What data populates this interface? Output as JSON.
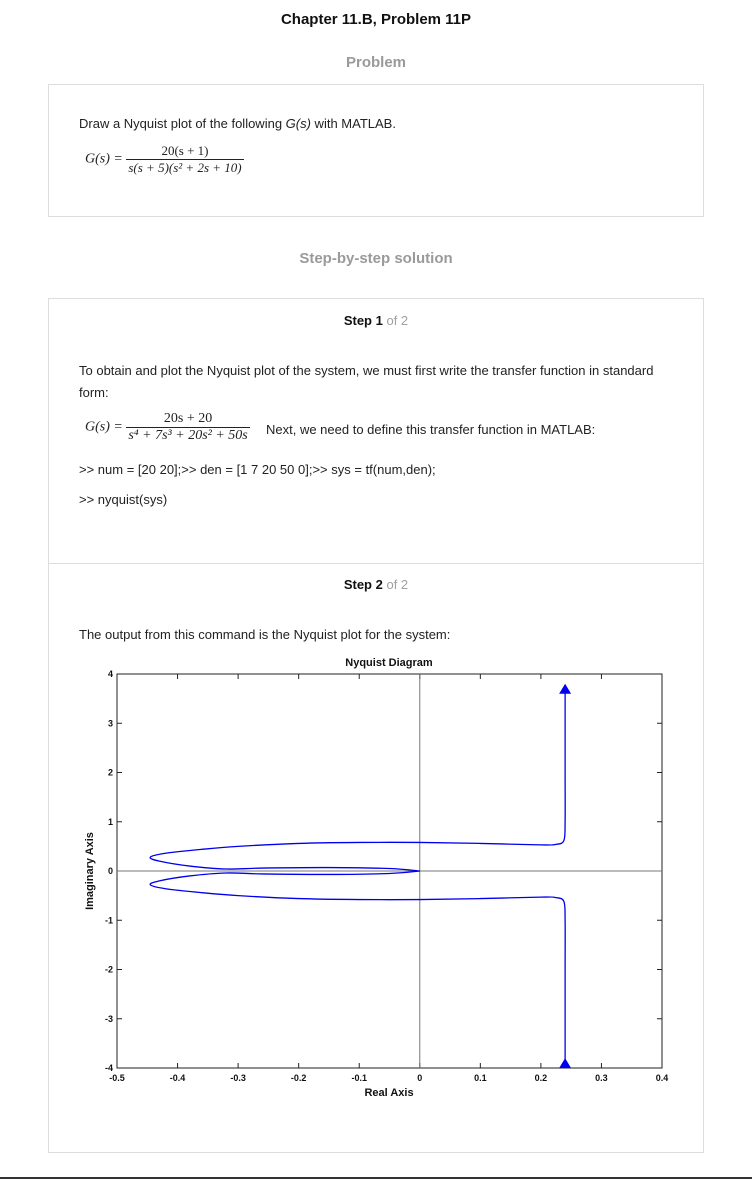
{
  "header": {
    "title": "Chapter 11.B, Problem 11P"
  },
  "problem": {
    "heading": "Problem",
    "text_prefix": "Draw a Nyquist plot of the following ",
    "text_g": "G(s)",
    "text_suffix": " with MATLAB.",
    "eq_lhs": "G(s) =",
    "eq_num": "20(s + 1)",
    "eq_den": "s(s + 5)(s² + 2s + 10)"
  },
  "solution": {
    "heading": "Step-by-step solution",
    "step1": {
      "label": "Step 1",
      "of": "of 2",
      "para": "To obtain and plot the Nyquist plot of the system, we must first write the transfer function in standard form:",
      "eq_lhs": "G(s) =",
      "eq_num": "20s + 20",
      "eq_den": "s⁴ + 7s³ + 20s² + 50s",
      "next_text": "Next, we need to define this transfer function in MATLAB:",
      "code1": ">> num = [20 20];>> den = [1 7 20 50 0];>> sys = tf(num,den);",
      "code2": ">> nyquist(sys)"
    },
    "step2": {
      "label": "Step 2",
      "of": "of 2",
      "para": "The output from this command is the Nyquist plot for the system:"
    }
  },
  "chart_data": {
    "type": "line",
    "title": "Nyquist Diagram",
    "xlabel": "Real Axis",
    "ylabel": "Imaginary Axis",
    "xlim": [
      -0.5,
      0.4
    ],
    "ylim": [
      -4,
      4
    ],
    "xticks": [
      "-0.5",
      "-0.4",
      "-0.3",
      "-0.2",
      "-0.1",
      "0",
      "0.1",
      "0.2",
      "0.3",
      "0.4"
    ],
    "yticks": [
      "-4",
      "-3",
      "-2",
      "-1",
      "0",
      "1",
      "2",
      "3",
      "4"
    ],
    "series_color": "#0000ee",
    "upper_branch": [
      [
        0.24,
        3.7
      ],
      [
        0.24,
        3.0
      ],
      [
        0.24,
        2.0
      ],
      [
        0.24,
        1.0
      ],
      [
        0.238,
        0.62
      ],
      [
        0.225,
        0.54
      ],
      [
        0.2,
        0.53
      ],
      [
        0.1,
        0.56
      ],
      [
        0.0,
        0.58
      ],
      [
        -0.1,
        0.58
      ],
      [
        -0.2,
        0.56
      ],
      [
        -0.3,
        0.5
      ],
      [
        -0.36,
        0.44
      ],
      [
        -0.42,
        0.36
      ],
      [
        -0.445,
        0.28
      ],
      [
        -0.43,
        0.2
      ],
      [
        -0.38,
        0.1
      ],
      [
        -0.32,
        0.04
      ],
      [
        -0.26,
        0.06
      ],
      [
        -0.15,
        0.07
      ],
      [
        -0.05,
        0.05
      ],
      [
        0.0,
        0.0
      ]
    ],
    "lower_branch": [
      [
        0.24,
        -3.9
      ],
      [
        0.24,
        -3.0
      ],
      [
        0.24,
        -2.0
      ],
      [
        0.24,
        -1.0
      ],
      [
        0.238,
        -0.62
      ],
      [
        0.225,
        -0.54
      ],
      [
        0.2,
        -0.53
      ],
      [
        0.1,
        -0.56
      ],
      [
        0.0,
        -0.58
      ],
      [
        -0.1,
        -0.58
      ],
      [
        -0.2,
        -0.56
      ],
      [
        -0.3,
        -0.5
      ],
      [
        -0.36,
        -0.44
      ],
      [
        -0.42,
        -0.36
      ],
      [
        -0.445,
        -0.28
      ],
      [
        -0.43,
        -0.2
      ],
      [
        -0.38,
        -0.1
      ],
      [
        -0.32,
        -0.04
      ],
      [
        -0.26,
        -0.06
      ],
      [
        -0.15,
        -0.07
      ],
      [
        -0.05,
        -0.05
      ],
      [
        0.0,
        0.0
      ]
    ],
    "arrows": [
      {
        "x": 0.24,
        "y": 3.7,
        "direction": "up"
      },
      {
        "x": 0.24,
        "y": -3.9,
        "direction": "up"
      }
    ],
    "reference_lines": {
      "x0": true,
      "y0": true
    }
  }
}
